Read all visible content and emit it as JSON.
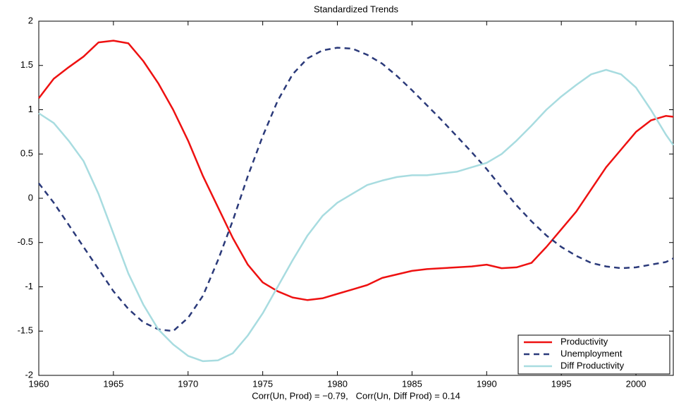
{
  "chart_data": {
    "type": "line",
    "title": "Standardized Trends",
    "xlabel": "Corr(Un, Prod) = −0.79,   Corr(Un, Diff Prod) = 0.14",
    "x": [
      1960,
      1961,
      1962,
      1963,
      1964,
      1965,
      1966,
      1967,
      1968,
      1969,
      1970,
      1971,
      1972,
      1973,
      1974,
      1975,
      1976,
      1977,
      1978,
      1979,
      1980,
      1981,
      1982,
      1983,
      1984,
      1985,
      1986,
      1987,
      1988,
      1989,
      1990,
      1991,
      1992,
      1993,
      1994,
      1995,
      1996,
      1997,
      1998,
      1999,
      2000,
      2001,
      2002,
      2002.5
    ],
    "series": [
      {
        "name": "Productivity",
        "color": "#ee1111",
        "dash": false,
        "values": [
          1.13,
          1.35,
          1.48,
          1.6,
          1.76,
          1.78,
          1.75,
          1.55,
          1.3,
          1.0,
          0.65,
          0.25,
          -0.1,
          -0.45,
          -0.75,
          -0.95,
          -1.05,
          -1.12,
          -1.15,
          -1.13,
          -1.08,
          -1.03,
          -0.98,
          -0.9,
          -0.86,
          -0.82,
          -0.8,
          -0.79,
          -0.78,
          -0.77,
          -0.75,
          -0.79,
          -0.78,
          -0.73,
          -0.55,
          -0.35,
          -0.15,
          0.1,
          0.35,
          0.55,
          0.75,
          0.88,
          0.93,
          0.92
        ]
      },
      {
        "name": "Unemployment",
        "color": "#2b3a7a",
        "dash": true,
        "values": [
          0.17,
          -0.05,
          -0.3,
          -0.55,
          -0.8,
          -1.05,
          -1.25,
          -1.4,
          -1.48,
          -1.5,
          -1.35,
          -1.1,
          -0.7,
          -0.25,
          0.25,
          0.7,
          1.1,
          1.4,
          1.58,
          1.67,
          1.7,
          1.69,
          1.62,
          1.52,
          1.38,
          1.22,
          1.05,
          0.88,
          0.7,
          0.52,
          0.33,
          0.12,
          -0.08,
          -0.26,
          -0.42,
          -0.55,
          -0.65,
          -0.73,
          -0.77,
          -0.79,
          -0.78,
          -0.75,
          -0.72,
          -0.68
        ]
      },
      {
        "name": "Diff Productivity",
        "color": "#a8dce0",
        "dash": false,
        "values": [
          0.96,
          0.85,
          0.65,
          0.42,
          0.05,
          -0.4,
          -0.85,
          -1.2,
          -1.48,
          -1.65,
          -1.78,
          -1.84,
          -1.83,
          -1.75,
          -1.55,
          -1.3,
          -1.0,
          -0.7,
          -0.42,
          -0.2,
          -0.05,
          0.05,
          0.15,
          0.2,
          0.24,
          0.26,
          0.26,
          0.28,
          0.3,
          0.35,
          0.4,
          0.5,
          0.65,
          0.82,
          1.0,
          1.15,
          1.28,
          1.4,
          1.45,
          1.4,
          1.25,
          1.0,
          0.72,
          0.6
        ]
      }
    ],
    "xlim": [
      1960,
      2002.5
    ],
    "ylim": [
      -2,
      2
    ],
    "xticks": [
      1960,
      1965,
      1970,
      1975,
      1980,
      1985,
      1990,
      1995,
      2000
    ],
    "yticks": [
      -2,
      -1.5,
      -1,
      -0.5,
      0,
      0.5,
      1,
      1.5,
      2
    ],
    "legend": "lower right"
  }
}
